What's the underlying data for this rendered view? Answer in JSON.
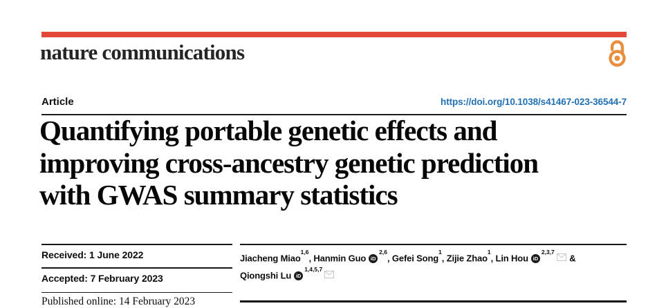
{
  "masthead": {
    "brand": "nature communications",
    "bar_color": "#e2493a",
    "open_access_color": "#e78f3e"
  },
  "article_header": {
    "kicker": "Article",
    "doi": "https://doi.org/10.1038/s41467-023-36544-7",
    "doi_color": "#2271b3"
  },
  "title": {
    "lines": [
      "Quantifying portable genetic effects and",
      "improving cross-ancestry genetic prediction",
      "with GWAS summary statistics"
    ]
  },
  "timeline": {
    "received": "Received: 1 June 2022",
    "accepted": "Accepted: 7 February 2023",
    "published": "Published online: 14 February 2023"
  },
  "authors": {
    "orcid_label": "iD",
    "lines": [
      [
        {
          "text": "Jiacheng Miao"
        },
        {
          "sup": "1,6"
        },
        {
          "text": ", Hanmin Guo"
        },
        {
          "orcid": true
        },
        {
          "sup": "2,6"
        },
        {
          "text": ", Gefei Song"
        },
        {
          "sup": "1"
        },
        {
          "text": ", Zijie Zhao"
        },
        {
          "sup": "1"
        },
        {
          "text": ", Lin Hou"
        },
        {
          "orcid": true
        },
        {
          "sup": "2,3,7"
        },
        {
          "envelope": true
        },
        {
          "text": " &"
        }
      ],
      [
        {
          "text": "Qiongshi Lu"
        },
        {
          "orcid": true
        },
        {
          "sup": "1,4,5,7"
        },
        {
          "envelope": true
        }
      ]
    ]
  }
}
